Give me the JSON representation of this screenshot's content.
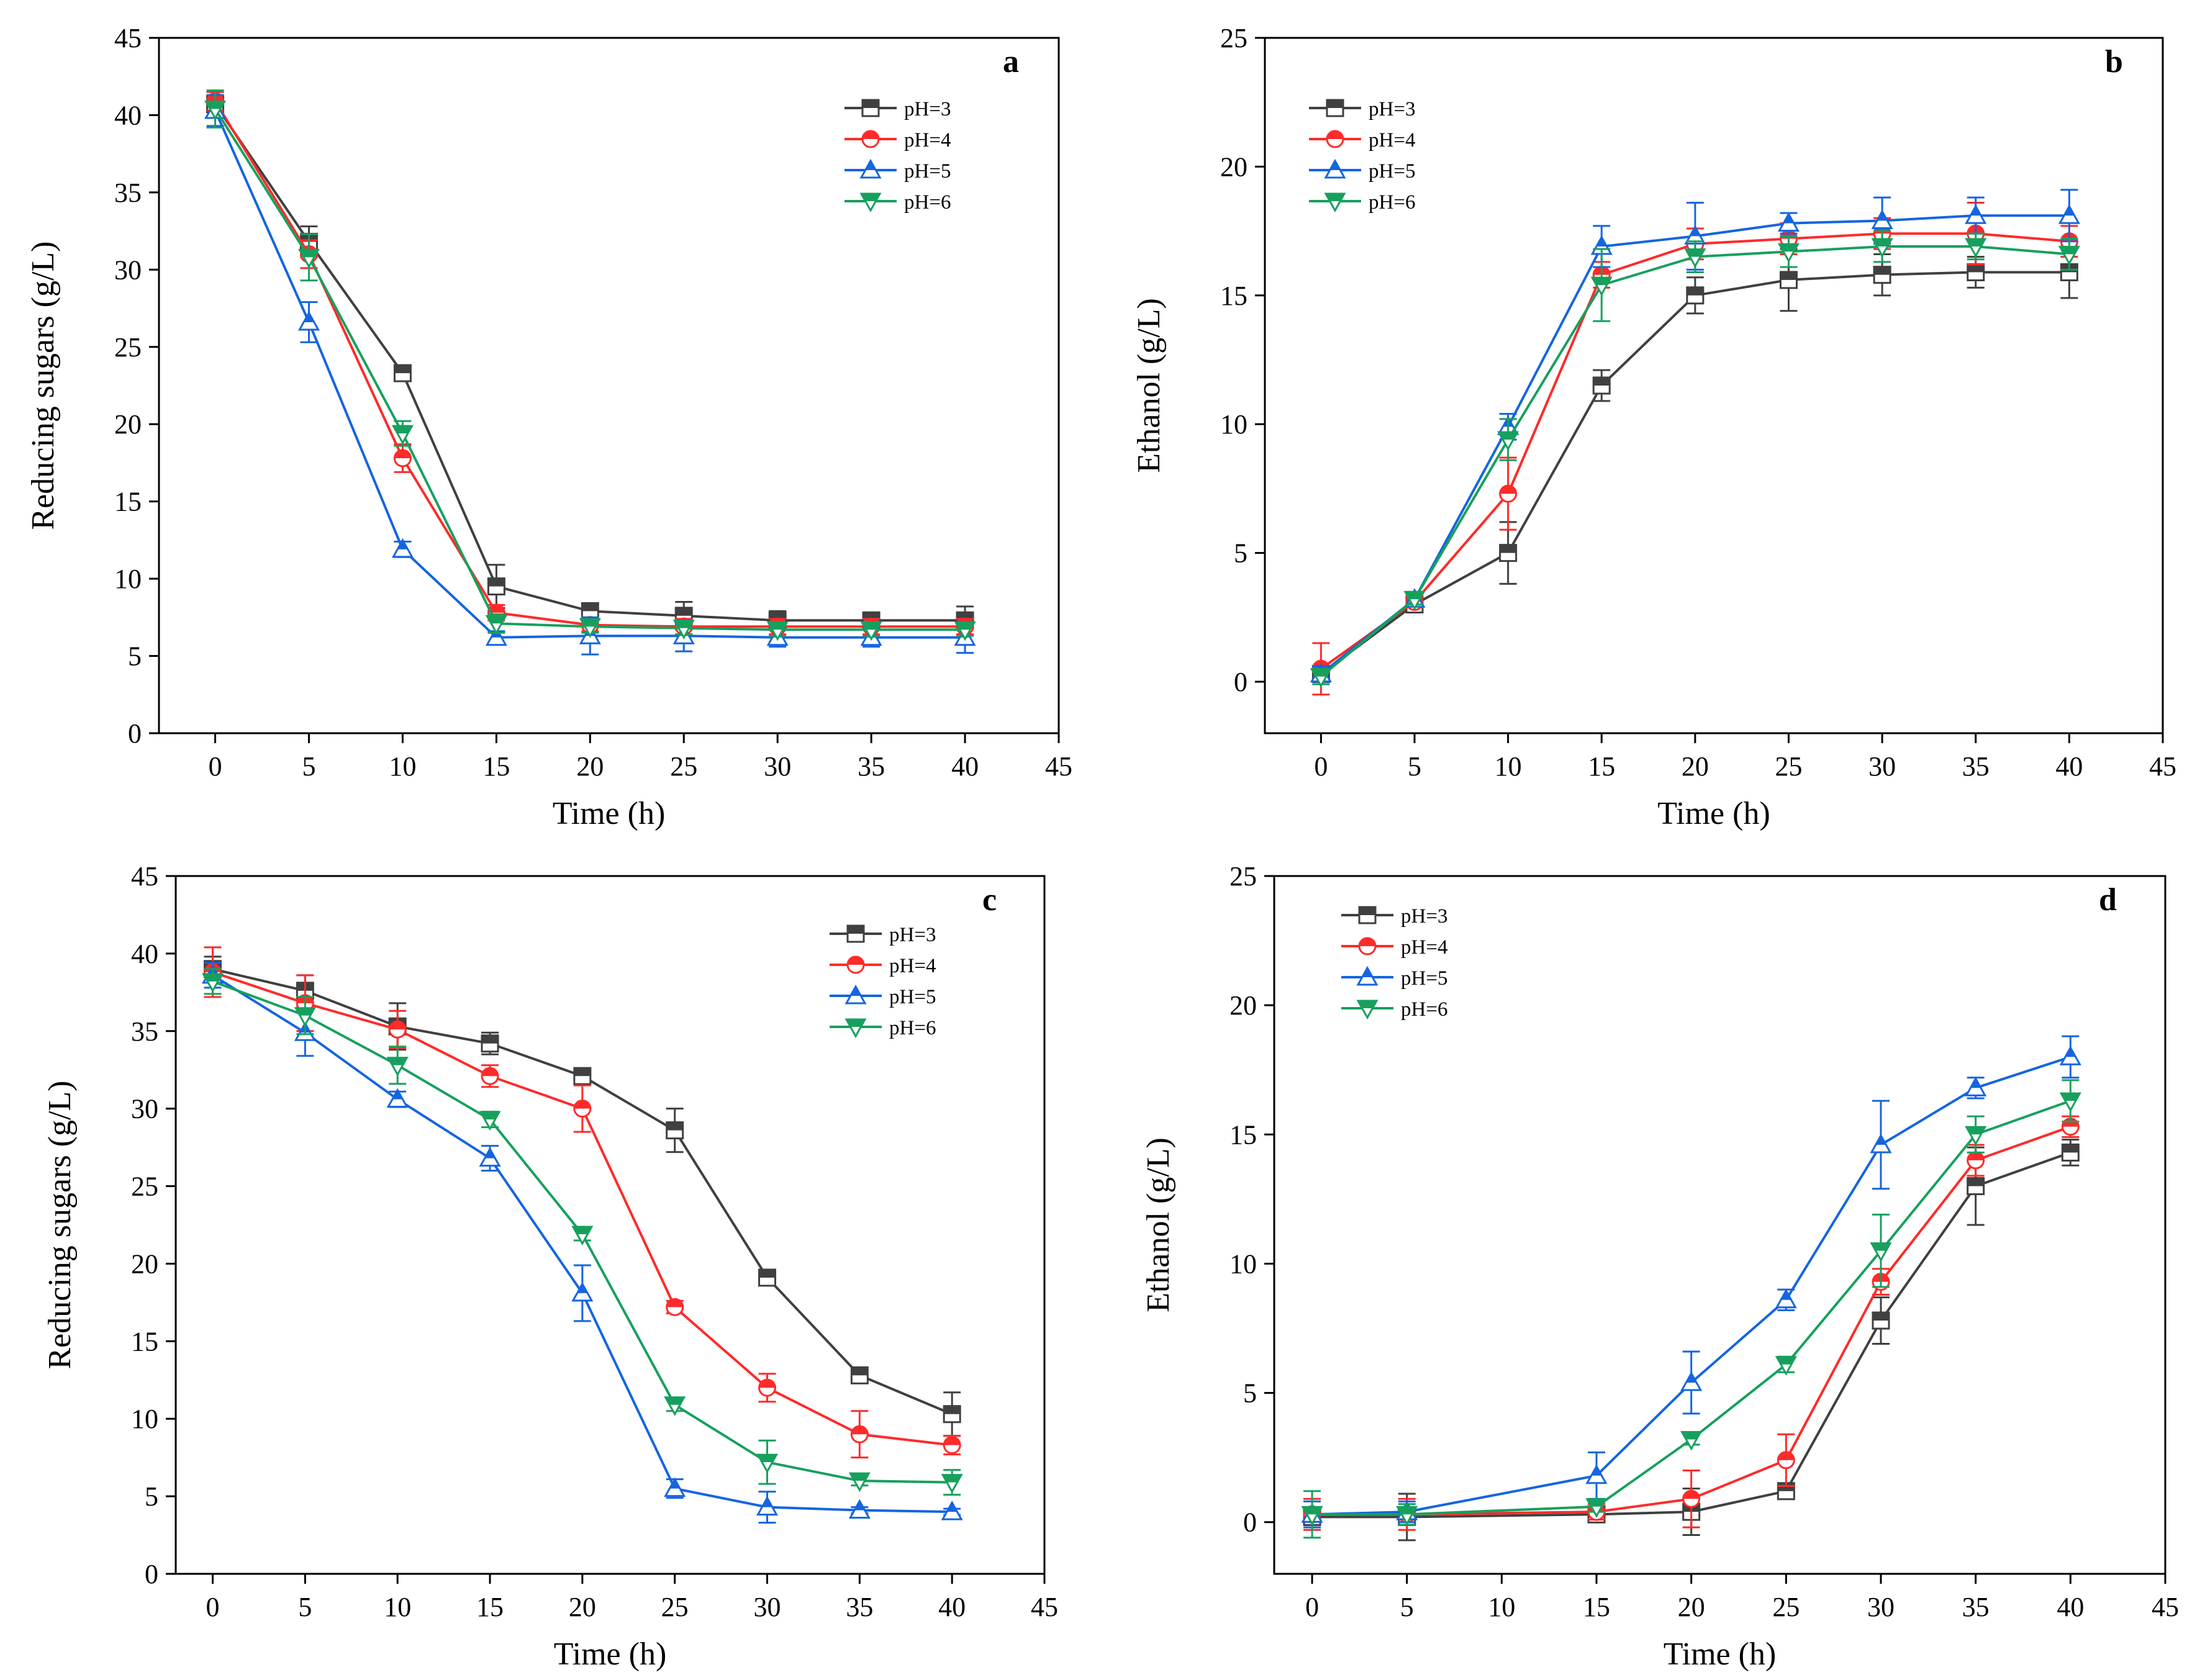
{
  "chart_data": [
    {
      "panel": "a",
      "type": "line",
      "xlabel": "Time (h)",
      "ylabel": "Reducing sugars (g/L)",
      "xlim": [
        -3,
        45
      ],
      "ylim": [
        0,
        45
      ],
      "xticks": [
        0,
        5,
        10,
        15,
        20,
        25,
        30,
        35,
        40,
        45
      ],
      "yticks": [
        0,
        5,
        10,
        15,
        20,
        25,
        30,
        35,
        40,
        45
      ],
      "x": [
        0,
        5,
        10,
        15,
        20,
        25,
        30,
        35,
        40
      ],
      "legend_position": "top-right",
      "series": [
        {
          "name": "pH=3",
          "color": "#404040",
          "marker": "square",
          "values": [
            40.7,
            31.8,
            23.3,
            9.5,
            7.9,
            7.6,
            7.3,
            7.3,
            7.3
          ],
          "errors": [
            0.8,
            1.0,
            0.4,
            1.4,
            0.4,
            0.9,
            0.6,
            0.4,
            0.9
          ]
        },
        {
          "name": "pH=4",
          "color": "#ff2a2a",
          "marker": "circle",
          "values": [
            40.9,
            31.0,
            17.8,
            7.8,
            7.0,
            6.9,
            6.9,
            6.9,
            6.9
          ],
          "errors": [
            0.6,
            0.9,
            0.9,
            0.5,
            0.4,
            0.5,
            0.5,
            0.5,
            0.5
          ]
        },
        {
          "name": "pH=5",
          "color": "#1565e0",
          "marker": "triangle-up",
          "values": [
            40.3,
            26.6,
            11.9,
            6.2,
            6.3,
            6.3,
            6.2,
            6.2,
            6.2
          ],
          "errors": [
            1.0,
            1.3,
            0.5,
            0.4,
            1.2,
            1.0,
            0.6,
            0.6,
            1.0
          ]
        },
        {
          "name": "pH=6",
          "color": "#17a05d",
          "marker": "triangle-down",
          "values": [
            40.4,
            30.8,
            19.4,
            7.1,
            6.9,
            6.8,
            6.7,
            6.7,
            6.7
          ],
          "errors": [
            1.2,
            1.5,
            0.8,
            0.6,
            0.4,
            0.4,
            0.4,
            0.4,
            0.4
          ]
        }
      ]
    },
    {
      "panel": "b",
      "type": "line",
      "xlabel": "Time (h)",
      "ylabel": "Ethanol (g/L)",
      "xlim": [
        -3,
        45
      ],
      "ylim": [
        -2,
        25
      ],
      "xticks": [
        0,
        5,
        10,
        15,
        20,
        25,
        30,
        35,
        40,
        45
      ],
      "yticks": [
        0,
        5,
        10,
        15,
        20,
        25
      ],
      "x": [
        0,
        5,
        10,
        15,
        20,
        25,
        30,
        35,
        40
      ],
      "legend_position": "top-left",
      "series": [
        {
          "name": "pH=3",
          "color": "#404040",
          "marker": "square",
          "values": [
            0.3,
            3.0,
            5.0,
            11.5,
            15.0,
            15.6,
            15.8,
            15.9,
            15.9
          ],
          "errors": [
            0.3,
            0.2,
            1.2,
            0.6,
            0.7,
            1.2,
            0.8,
            0.6,
            1.0
          ]
        },
        {
          "name": "pH=4",
          "color": "#ff2a2a",
          "marker": "circle",
          "values": [
            0.5,
            3.1,
            7.3,
            15.8,
            17.0,
            17.2,
            17.4,
            17.4,
            17.1
          ],
          "errors": [
            1.0,
            0.2,
            1.4,
            0.5,
            0.6,
            0.6,
            0.6,
            1.2,
            0.6
          ]
        },
        {
          "name": "pH=5",
          "color": "#1565e0",
          "marker": "triangle-up",
          "values": [
            0.3,
            3.2,
            9.9,
            16.9,
            17.3,
            17.8,
            17.9,
            18.1,
            18.1
          ],
          "errors": [
            0.3,
            0.2,
            0.5,
            0.8,
            1.3,
            0.4,
            0.9,
            0.7,
            1.0
          ]
        },
        {
          "name": "pH=6",
          "color": "#17a05d",
          "marker": "triangle-down",
          "values": [
            0.2,
            3.2,
            9.4,
            15.4,
            16.5,
            16.7,
            16.9,
            16.9,
            16.6
          ],
          "errors": [
            0.3,
            0.2,
            0.8,
            1.4,
            0.6,
            0.6,
            0.6,
            0.5,
            0.6
          ]
        }
      ]
    },
    {
      "panel": "c",
      "type": "line",
      "xlabel": "Time (h)",
      "ylabel": "Reducing sugars (g/L)",
      "xlim": [
        -2,
        45
      ],
      "ylim": [
        0,
        45
      ],
      "xticks": [
        0,
        5,
        10,
        15,
        20,
        25,
        30,
        35,
        40,
        45
      ],
      "yticks": [
        0,
        5,
        10,
        15,
        20,
        25,
        30,
        35,
        40,
        45
      ],
      "x": [
        0,
        5,
        10,
        15,
        20,
        25,
        30,
        35,
        40
      ],
      "legend_position": "top-right",
      "series": [
        {
          "name": "pH=3",
          "color": "#404040",
          "marker": "square",
          "values": [
            39.0,
            37.6,
            35.3,
            34.2,
            32.1,
            28.6,
            19.1,
            12.8,
            10.3
          ],
          "errors": [
            0.8,
            1.0,
            1.5,
            0.7,
            0.5,
            1.4,
            0.5,
            0.5,
            1.4
          ]
        },
        {
          "name": "pH=4",
          "color": "#ff2a2a",
          "marker": "circle",
          "values": [
            38.8,
            36.8,
            35.1,
            32.1,
            30.0,
            17.2,
            12.0,
            9.0,
            8.3
          ],
          "errors": [
            1.6,
            1.8,
            1.2,
            0.7,
            1.5,
            0.4,
            0.9,
            1.5,
            0.6
          ]
        },
        {
          "name": "pH=5",
          "color": "#1565e0",
          "marker": "triangle-up",
          "values": [
            38.6,
            34.9,
            30.6,
            26.8,
            18.1,
            5.5,
            4.3,
            4.1,
            4.0
          ],
          "errors": [
            0.8,
            1.5,
            0.5,
            0.8,
            1.8,
            0.6,
            1.0,
            0.2,
            0.2
          ]
        },
        {
          "name": "pH=6",
          "color": "#17a05d",
          "marker": "triangle-down",
          "values": [
            38.2,
            36.0,
            32.8,
            29.3,
            21.9,
            10.9,
            7.2,
            6.0,
            5.9
          ],
          "errors": [
            0.8,
            1.2,
            1.2,
            0.5,
            0.4,
            0.4,
            1.4,
            0.3,
            0.8
          ]
        }
      ]
    },
    {
      "panel": "d",
      "type": "line",
      "xlabel": "Time (h)",
      "ylabel": "Ethanol (g/L)",
      "xlim": [
        -2,
        45
      ],
      "ylim": [
        -2,
        25
      ],
      "xticks": [
        0,
        5,
        10,
        15,
        20,
        25,
        30,
        35,
        40,
        45
      ],
      "yticks": [
        0,
        5,
        10,
        15,
        20,
        25
      ],
      "x": [
        0,
        5,
        15,
        20,
        25,
        30,
        35,
        40
      ],
      "legend_position": "top-left",
      "series": [
        {
          "name": "pH=3",
          "color": "#404040",
          "marker": "square",
          "values": [
            0.2,
            0.2,
            0.3,
            0.4,
            1.2,
            7.8,
            13.0,
            14.3
          ],
          "errors": [
            0.3,
            0.9,
            0.2,
            0.9,
            0.2,
            0.9,
            1.5,
            0.5
          ]
        },
        {
          "name": "pH=4",
          "color": "#ff2a2a",
          "marker": "circle",
          "values": [
            0.3,
            0.3,
            0.4,
            0.9,
            2.4,
            9.3,
            14.0,
            15.3
          ],
          "errors": [
            0.6,
            0.6,
            0.3,
            1.1,
            1.0,
            0.5,
            0.6,
            0.4
          ]
        },
        {
          "name": "pH=5",
          "color": "#1565e0",
          "marker": "triangle-up",
          "values": [
            0.3,
            0.4,
            1.8,
            5.4,
            8.6,
            14.6,
            16.8,
            18.0
          ],
          "errors": [
            0.5,
            0.4,
            0.9,
            1.2,
            0.4,
            1.7,
            0.4,
            0.8
          ]
        },
        {
          "name": "pH=6",
          "color": "#17a05d",
          "marker": "triangle-down",
          "values": [
            0.3,
            0.3,
            0.6,
            3.2,
            6.1,
            10.5,
            15.0,
            16.3
          ],
          "errors": [
            0.9,
            0.4,
            0.2,
            0.2,
            0.3,
            1.4,
            0.7,
            0.8
          ]
        }
      ]
    }
  ]
}
